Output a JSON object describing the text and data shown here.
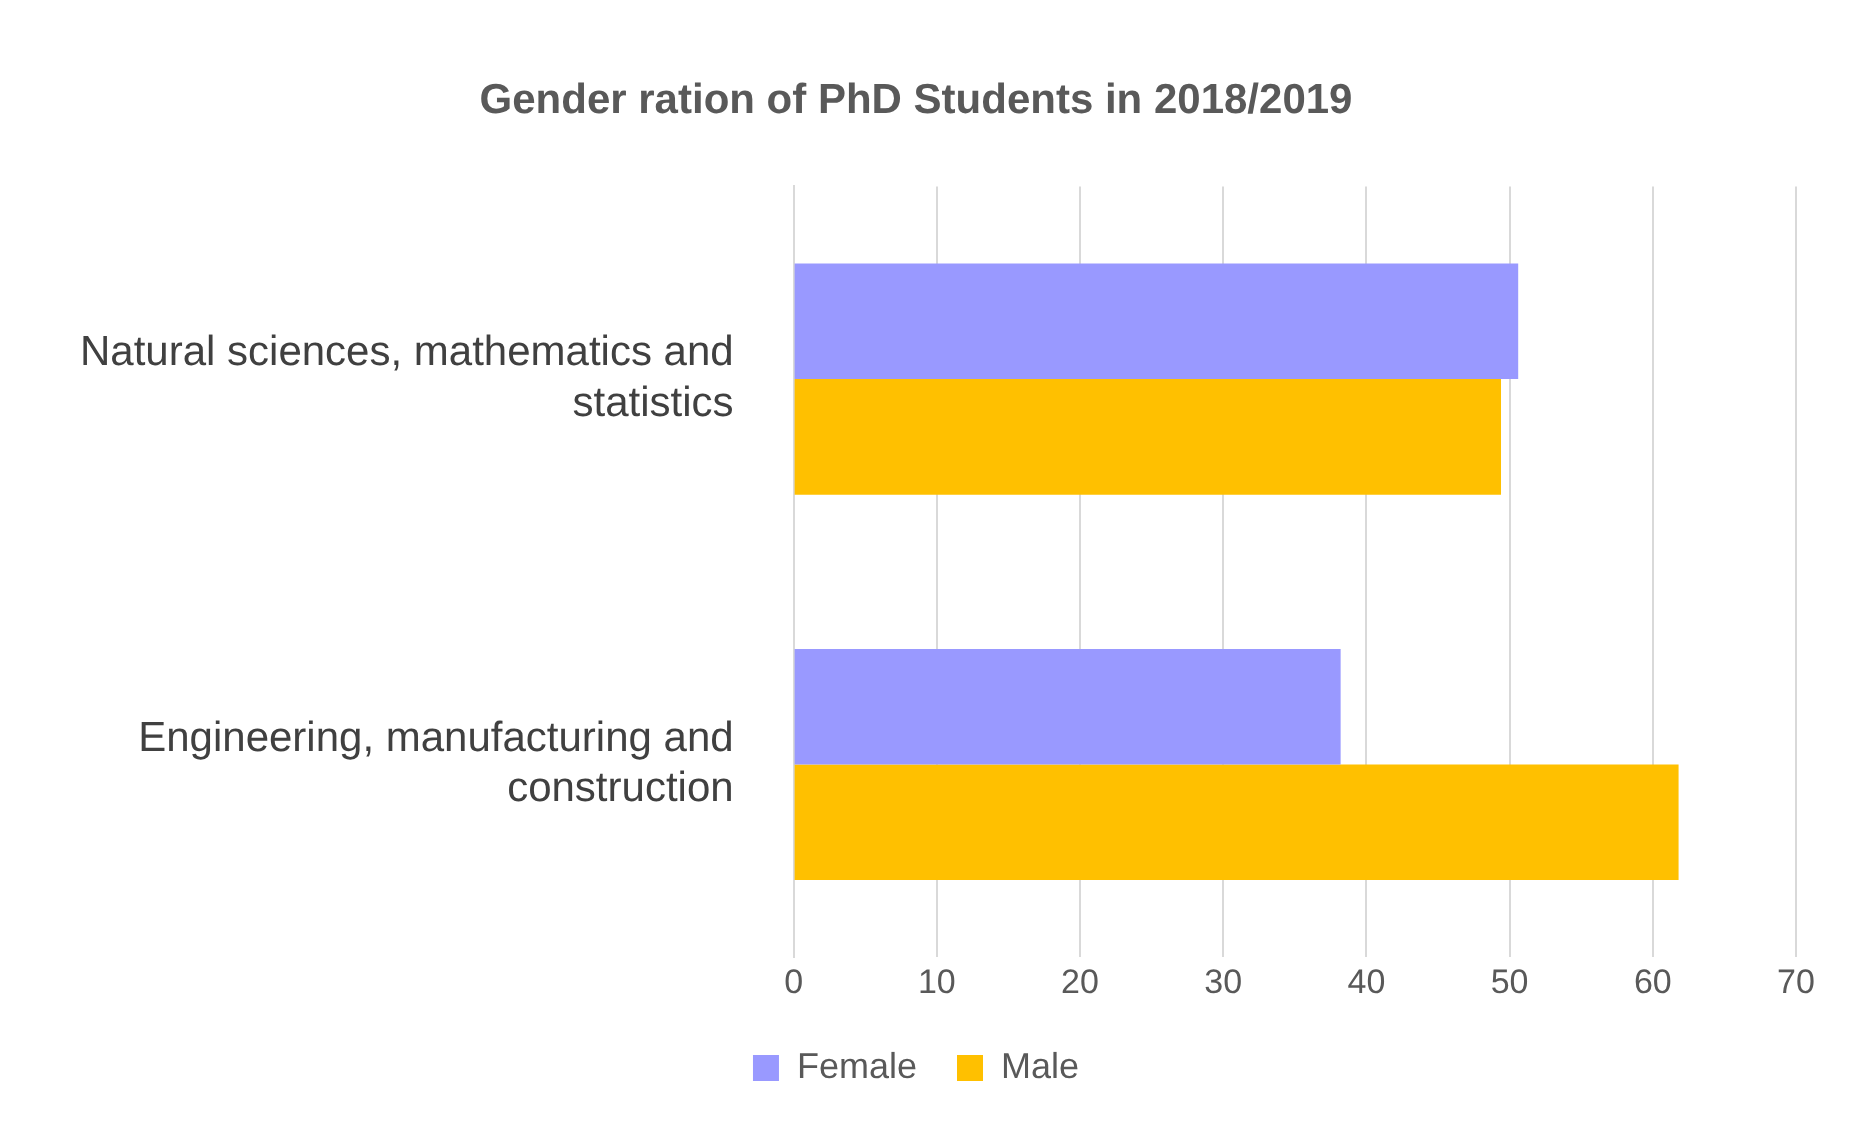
{
  "chart_data": {
    "type": "bar",
    "orientation": "horizontal",
    "title": "Gender ration of PhD Students in 2018/2019",
    "categories": [
      "Natural sciences, mathematics and statistics",
      "Engineering, manufacturing and construction"
    ],
    "series": [
      {
        "name": "Female",
        "color": "#9999ff",
        "values": [
          50.6,
          38.2
        ]
      },
      {
        "name": "Male",
        "color": "#ffc000",
        "values": [
          49.4,
          61.8
        ]
      }
    ],
    "xlim": [
      0,
      70
    ],
    "xticks": [
      0,
      10,
      20,
      30,
      40,
      50,
      60,
      70
    ],
    "grid": "x",
    "legend": "bottom"
  }
}
